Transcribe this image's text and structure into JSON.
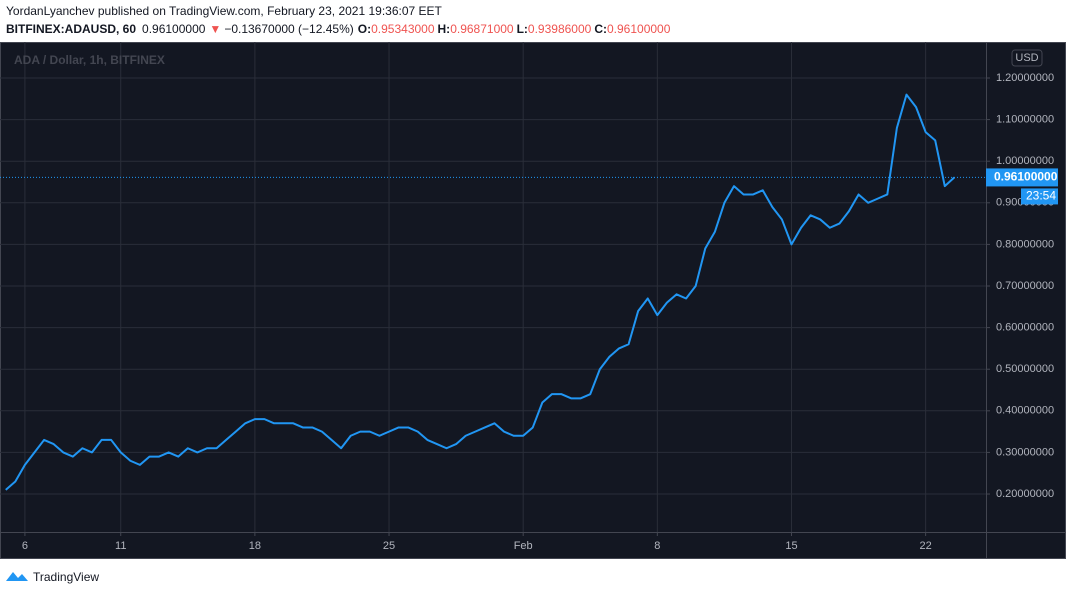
{
  "header": {
    "line1": "YordanLyanchev published on TradingView.com, February 23, 2021 19:36:07 EET",
    "symbol": "BITFINEX:ADAUSD, 60",
    "last": "0.96100000",
    "arrow": "▼",
    "change": "−0.13670000 (−12.45%)",
    "o_label": "O:",
    "o": "0.95343000",
    "h_label": "H:",
    "h": "0.96871000",
    "l_label": "L:",
    "l": "0.93986000",
    "c_label": "C:",
    "c": "0.96100000"
  },
  "footer": {
    "brand": "TradingView"
  },
  "chart_data": {
    "type": "line",
    "legend": "ADA / Dollar, 1h, BITFINEX",
    "currency": "USD",
    "series": [
      {
        "name": "ADAUSD",
        "color": "#2196f3",
        "values": [
          0.21,
          0.23,
          0.27,
          0.3,
          0.33,
          0.32,
          0.3,
          0.29,
          0.31,
          0.3,
          0.33,
          0.33,
          0.3,
          0.28,
          0.27,
          0.29,
          0.29,
          0.3,
          0.29,
          0.31,
          0.3,
          0.31,
          0.31,
          0.33,
          0.35,
          0.37,
          0.38,
          0.38,
          0.37,
          0.37,
          0.37,
          0.36,
          0.36,
          0.35,
          0.33,
          0.31,
          0.34,
          0.35,
          0.35,
          0.34,
          0.35,
          0.36,
          0.36,
          0.35,
          0.33,
          0.32,
          0.31,
          0.32,
          0.34,
          0.35,
          0.36,
          0.37,
          0.35,
          0.34,
          0.34,
          0.36,
          0.42,
          0.44,
          0.44,
          0.43,
          0.43,
          0.44,
          0.5,
          0.53,
          0.55,
          0.56,
          0.64,
          0.67,
          0.63,
          0.66,
          0.68,
          0.67,
          0.7,
          0.79,
          0.83,
          0.9,
          0.94,
          0.92,
          0.92,
          0.93,
          0.89,
          0.86,
          0.8,
          0.84,
          0.87,
          0.86,
          0.84,
          0.85,
          0.88,
          0.92,
          0.9,
          0.91,
          0.92,
          1.08,
          1.16,
          1.13,
          1.07,
          1.05,
          0.94,
          0.961
        ]
      }
    ],
    "last_price": {
      "value": 0.961,
      "label": "0.96100000"
    },
    "countdown": "23:54",
    "xlim": [
      -0.6,
      102.3
    ],
    "xticks": [
      {
        "value": 2,
        "label": "6"
      },
      {
        "value": 12,
        "label": "11"
      },
      {
        "value": 26,
        "label": "18"
      },
      {
        "value": 40,
        "label": "25"
      },
      {
        "value": 54,
        "label": "Feb"
      },
      {
        "value": 68,
        "label": "8"
      },
      {
        "value": 82,
        "label": "15"
      },
      {
        "value": 96,
        "label": "22"
      }
    ],
    "ylim": [
      0.1087,
      1.2865
    ],
    "yticks": [
      {
        "value": 0.2,
        "label": "0.20000000"
      },
      {
        "value": 0.3,
        "label": "0.30000000"
      },
      {
        "value": 0.4,
        "label": "0.40000000"
      },
      {
        "value": 0.5,
        "label": "0.50000000"
      },
      {
        "value": 0.6,
        "label": "0.60000000"
      },
      {
        "value": 0.7,
        "label": "0.70000000"
      },
      {
        "value": 0.8,
        "label": "0.80000000"
      },
      {
        "value": 0.9,
        "label": "0.90000000"
      },
      {
        "value": 1.0,
        "label": "1.00000000"
      },
      {
        "value": 1.1,
        "label": "1.10000000"
      },
      {
        "value": 1.2,
        "label": "1.20000000"
      }
    ],
    "grid": true
  }
}
